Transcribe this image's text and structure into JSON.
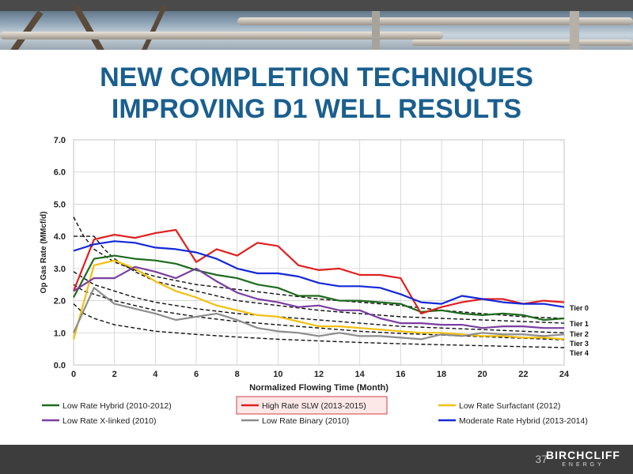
{
  "title_line1": "NEW COMPLETION TECHNIQUES",
  "title_line2": "IMPROVING D1 WELL RESULTS",
  "page_number": "37",
  "logo": {
    "line1": "BIRCHCLIFF",
    "line2": "ENERGY"
  },
  "colors": {
    "title": "#1a5f8e",
    "footer": "#3d3d3d"
  },
  "chart_data": {
    "type": "line",
    "xlabel": "Normalized Flowing Time (Month)",
    "ylabel": "Op Gas Rate (MMcf/d)",
    "xlim": [
      0,
      24
    ],
    "ylim": [
      0,
      7
    ],
    "xticks": [
      0,
      2,
      4,
      6,
      8,
      10,
      12,
      14,
      16,
      18,
      20,
      22,
      24
    ],
    "yticks": [
      "0.0",
      "1.0",
      "2.0",
      "3.0",
      "4.0",
      "5.0",
      "6.0",
      "7.0"
    ],
    "grid": true,
    "legend_position": "bottom",
    "highlighted_series": "High Rate SLW (2013-2015)",
    "series": [
      {
        "name": "Low Rate Hybrid (2010-2012)",
        "color": "#1e6b1e",
        "x": [
          0,
          1,
          2,
          3,
          4,
          5,
          6,
          7,
          8,
          9,
          10,
          11,
          12,
          13,
          14,
          15,
          16,
          17,
          18,
          19,
          20,
          21,
          22,
          23,
          24
        ],
        "y": [
          2.1,
          3.3,
          3.4,
          3.3,
          3.25,
          3.15,
          2.95,
          2.8,
          2.7,
          2.5,
          2.4,
          2.15,
          2.15,
          2.0,
          2.0,
          1.95,
          1.9,
          1.65,
          1.7,
          1.6,
          1.55,
          1.6,
          1.55,
          1.4,
          1.45
        ]
      },
      {
        "name": "High Rate SLW (2013-2015)",
        "color": "#e02020",
        "x": [
          0,
          1,
          2,
          3,
          4,
          5,
          6,
          7,
          8,
          9,
          10,
          11,
          12,
          13,
          14,
          15,
          16,
          17,
          18,
          19,
          20,
          21,
          22,
          23,
          24
        ],
        "y": [
          2.3,
          3.9,
          4.05,
          3.95,
          4.1,
          4.2,
          3.2,
          3.6,
          3.4,
          3.8,
          3.7,
          3.1,
          2.95,
          3.0,
          2.8,
          2.8,
          2.7,
          1.6,
          1.8,
          1.95,
          2.05,
          2.05,
          1.9,
          2.0,
          1.95
        ]
      },
      {
        "name": "Low Rate Surfactant (2012)",
        "color": "#f2c010",
        "x": [
          0,
          1,
          2,
          3,
          4,
          5,
          6,
          7,
          8,
          9,
          10,
          11,
          12,
          13,
          14,
          15,
          16,
          17,
          18,
          19,
          20,
          21,
          22,
          23,
          24
        ],
        "y": [
          0.8,
          3.1,
          3.25,
          3.0,
          2.6,
          2.3,
          2.1,
          1.85,
          1.7,
          1.55,
          1.5,
          1.35,
          1.2,
          1.2,
          1.15,
          1.1,
          1.05,
          1.0,
          1.0,
          0.95,
          0.9,
          0.9,
          0.85,
          0.85,
          0.8
        ]
      },
      {
        "name": "Low Rate X-linked (2010)",
        "color": "#7b3fa0",
        "x": [
          0,
          1,
          2,
          3,
          4,
          5,
          6,
          7,
          8,
          9,
          10,
          11,
          12,
          13,
          14,
          15,
          16,
          17,
          18,
          19,
          20,
          21,
          22,
          23,
          24
        ],
        "y": [
          2.3,
          2.7,
          2.7,
          3.05,
          2.9,
          2.7,
          3.0,
          2.6,
          2.25,
          2.05,
          1.95,
          1.8,
          1.85,
          1.7,
          1.7,
          1.45,
          1.3,
          1.3,
          1.25,
          1.25,
          1.15,
          1.2,
          1.2,
          1.15,
          1.15
        ]
      },
      {
        "name": "Low Rate Binary (2010)",
        "color": "#8c8c8c",
        "x": [
          0,
          1,
          2,
          3,
          4,
          5,
          6,
          7,
          8,
          9,
          10,
          11,
          12,
          13,
          14,
          15,
          16,
          17,
          18,
          19,
          20,
          21,
          22,
          23,
          24
        ],
        "y": [
          1.0,
          2.4,
          1.9,
          1.75,
          1.6,
          1.4,
          1.5,
          1.6,
          1.4,
          1.15,
          1.05,
          1.0,
          0.9,
          1.0,
          0.9,
          0.9,
          0.85,
          0.8,
          0.95,
          0.9,
          1.0,
          0.95,
          0.95,
          0.9,
          0.95
        ]
      },
      {
        "name": "Moderate Rate Hybrid (2013-2014)",
        "color": "#1428d8",
        "x": [
          0,
          1,
          2,
          3,
          4,
          5,
          6,
          7,
          8,
          9,
          10,
          11,
          12,
          13,
          14,
          15,
          16,
          17,
          18,
          19,
          20,
          21,
          22,
          23,
          24
        ],
        "y": [
          3.55,
          3.75,
          3.85,
          3.8,
          3.65,
          3.6,
          3.5,
          3.3,
          3.0,
          2.85,
          2.85,
          2.75,
          2.55,
          2.45,
          2.45,
          2.4,
          2.2,
          1.95,
          1.9,
          2.15,
          2.05,
          1.95,
          1.9,
          1.9,
          1.8
        ]
      }
    ],
    "type_curves": [
      {
        "name": "Tier 0",
        "x": [
          0,
          0.5,
          1,
          2,
          3,
          4,
          6,
          8,
          10,
          12,
          14,
          16,
          18,
          20,
          22,
          24
        ],
        "y": [
          4.6,
          4.0,
          3.6,
          3.2,
          2.95,
          2.75,
          2.5,
          2.35,
          2.2,
          2.05,
          1.95,
          1.85,
          1.7,
          1.6,
          1.5,
          1.45
        ]
      },
      {
        "name": "Tier 1",
        "x": [
          0,
          0.3,
          1,
          1.5,
          2,
          3,
          4,
          6,
          8,
          10,
          12,
          14,
          16,
          18,
          20,
          22,
          24
        ],
        "y": [
          4.0,
          4.0,
          4.0,
          3.6,
          3.3,
          2.9,
          2.6,
          2.3,
          2.0,
          1.85,
          1.7,
          1.6,
          1.5,
          1.45,
          1.4,
          1.35,
          1.3
        ]
      },
      {
        "name": "Tier 2",
        "x": [
          0,
          0.5,
          1,
          2,
          3,
          4,
          6,
          8,
          10,
          12,
          14,
          16,
          18,
          20,
          22,
          24
        ],
        "y": [
          2.9,
          2.7,
          2.5,
          2.3,
          2.1,
          1.95,
          1.75,
          1.6,
          1.5,
          1.4,
          1.3,
          1.2,
          1.15,
          1.1,
          1.05,
          1.0
        ]
      },
      {
        "name": "Tier 3",
        "x": [
          0,
          0.5,
          1,
          2,
          3,
          4,
          6,
          8,
          10,
          12,
          14,
          16,
          18,
          20,
          22,
          24
        ],
        "y": [
          2.5,
          2.3,
          2.2,
          2.0,
          1.85,
          1.7,
          1.5,
          1.35,
          1.25,
          1.15,
          1.05,
          0.98,
          0.93,
          0.88,
          0.83,
          0.78
        ]
      },
      {
        "name": "Tier 4",
        "x": [
          0,
          0.5,
          1,
          2,
          3,
          4,
          6,
          8,
          10,
          12,
          14,
          16,
          18,
          20,
          22,
          24
        ],
        "y": [
          1.9,
          1.6,
          1.45,
          1.25,
          1.15,
          1.05,
          0.95,
          0.87,
          0.8,
          0.75,
          0.7,
          0.66,
          0.63,
          0.6,
          0.57,
          0.54
        ]
      }
    ]
  }
}
